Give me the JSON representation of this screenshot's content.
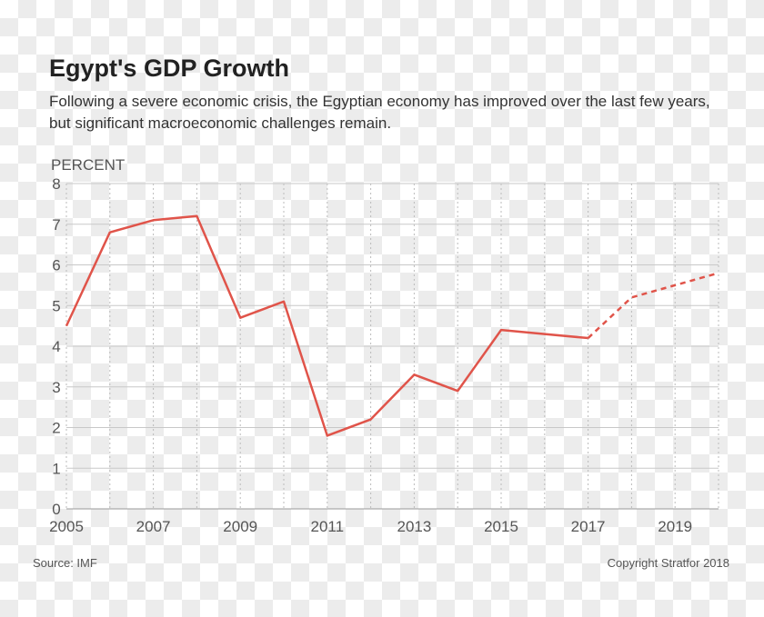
{
  "title": "Egypt's GDP Growth",
  "subtitle": "Following a severe economic crisis, the Egyptian economy has improved over the last few years, but significant macroeconomic challenges remain.",
  "source": "Source: IMF",
  "copyright": "Copyright Stratfor 2018",
  "chart_data": {
    "type": "line",
    "title": "Egypt's GDP Growth",
    "ylabel": "PERCENT",
    "xlabel": "",
    "ylim": [
      0,
      8
    ],
    "xlim": [
      2005,
      2020
    ],
    "yticks": [
      "0",
      "1",
      "2",
      "3",
      "4",
      "5",
      "6",
      "7",
      "8"
    ],
    "xticks": [
      "2005",
      "2007",
      "2009",
      "2011",
      "2013",
      "2015",
      "2017",
      "2019"
    ],
    "grid": true,
    "color": "#e0544a",
    "x": [
      2005,
      2006,
      2007,
      2008,
      2009,
      2010,
      2011,
      2012,
      2013,
      2014,
      2015,
      2016,
      2017,
      2018,
      2019,
      2020
    ],
    "values": [
      4.5,
      6.8,
      7.1,
      7.2,
      4.7,
      5.1,
      1.8,
      2.2,
      3.3,
      2.9,
      4.4,
      4.3,
      4.2,
      5.2,
      5.5,
      5.8
    ],
    "projected_from": 2017
  }
}
